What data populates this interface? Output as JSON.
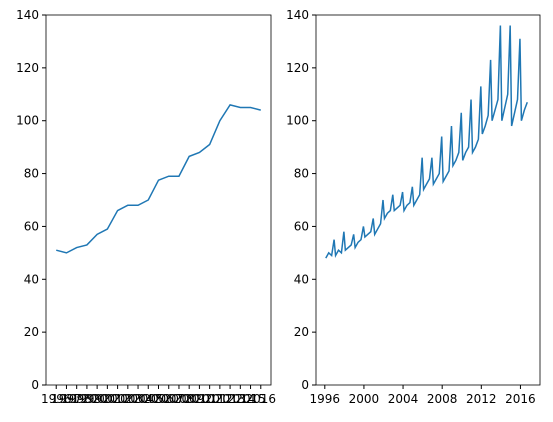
{
  "chart_data": [
    {
      "type": "line",
      "color": "#1f77b4",
      "categories": [
        "1996",
        "1997",
        "1998",
        "1999",
        "2000",
        "2001",
        "2002",
        "2003",
        "2004",
        "2005",
        "2006",
        "2007",
        "2008",
        "2009",
        "2010",
        "2011",
        "2012",
        "2013",
        "2014",
        "2015",
        "2016"
      ],
      "values": [
        51,
        50,
        52,
        53,
        57,
        59,
        66,
        68,
        68,
        70,
        77.5,
        79,
        79,
        86.5,
        88,
        91,
        100,
        106,
        105,
        105,
        104
      ],
      "ylim": [
        0,
        140
      ],
      "yticks": [
        0,
        20,
        40,
        60,
        80,
        100,
        120,
        140
      ]
    },
    {
      "type": "line",
      "color": "#1f77b4",
      "x": [
        1996.1,
        1996.4,
        1996.7,
        1996.95,
        1997.1,
        1997.4,
        1997.7,
        1997.95,
        1998.1,
        1998.4,
        1998.7,
        1998.95,
        1999.1,
        1999.4,
        1999.7,
        1999.95,
        2000.1,
        2000.4,
        2000.7,
        2000.95,
        2001.1,
        2001.4,
        2001.7,
        2001.95,
        2002.1,
        2002.4,
        2002.7,
        2002.95,
        2003.1,
        2003.4,
        2003.7,
        2003.95,
        2004.1,
        2004.4,
        2004.7,
        2004.95,
        2005.1,
        2005.4,
        2005.7,
        2005.95,
        2006.1,
        2006.4,
        2006.7,
        2006.95,
        2007.1,
        2007.4,
        2007.7,
        2007.95,
        2008.1,
        2008.4,
        2008.7,
        2008.95,
        2009.1,
        2009.4,
        2009.7,
        2009.95,
        2010.1,
        2010.4,
        2010.7,
        2010.95,
        2011.1,
        2011.4,
        2011.7,
        2011.95,
        2012.1,
        2012.4,
        2012.7,
        2012.95,
        2013.1,
        2013.4,
        2013.7,
        2013.95,
        2014.1,
        2014.4,
        2014.7,
        2014.95,
        2015.1,
        2015.4,
        2015.7,
        2015.95,
        2016.1,
        2016.4,
        2016.7
      ],
      "values": [
        48,
        50,
        49,
        55,
        49,
        51,
        50,
        58,
        51,
        52,
        53,
        57,
        52,
        54,
        55,
        60,
        56,
        57,
        58,
        63,
        57,
        59,
        61,
        70,
        63,
        65,
        66,
        72,
        66,
        67,
        68,
        73,
        66,
        68,
        69,
        75,
        68,
        70,
        72,
        86,
        74,
        76,
        78,
        86,
        76,
        78,
        80,
        94,
        77,
        79,
        81,
        98,
        83,
        85,
        88,
        103,
        85,
        88,
        90,
        108,
        88,
        90,
        93,
        113,
        95,
        98,
        102,
        123,
        100,
        104,
        108,
        136,
        100,
        105,
        110,
        136,
        98,
        103,
        108,
        131,
        100,
        104,
        107
      ],
      "xlim": [
        1995.1,
        2018.0
      ],
      "xticks": [
        1996,
        2000,
        2004,
        2008,
        2012,
        2016
      ],
      "ylim": [
        0,
        140
      ],
      "yticks": [
        0,
        20,
        40,
        60,
        80,
        100,
        120,
        140
      ]
    }
  ]
}
